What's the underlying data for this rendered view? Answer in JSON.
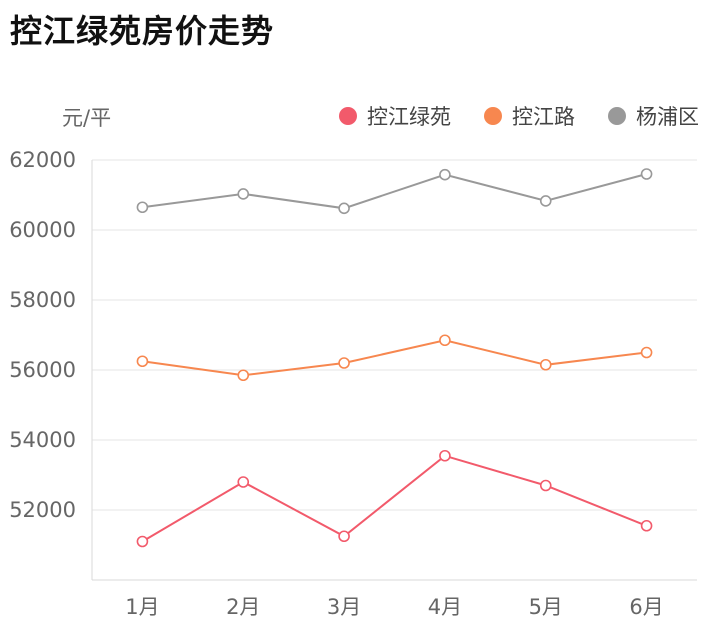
{
  "title": "控江绿苑房价走势",
  "chart_data": {
    "type": "line",
    "title": "控江绿苑房价走势",
    "ylabel": "元/平",
    "xlabel": "",
    "categories": [
      "1月",
      "2月",
      "3月",
      "4月",
      "5月",
      "6月"
    ],
    "ylim": [
      50000,
      62000
    ],
    "yticks": [
      52000,
      54000,
      56000,
      58000,
      60000,
      62000
    ],
    "grid": true,
    "legend_position": "top-right",
    "series": [
      {
        "name": "控江绿苑",
        "color": "#f25a6b",
        "values": [
          51100,
          52800,
          51250,
          53550,
          52700,
          51550
        ]
      },
      {
        "name": "控江路",
        "color": "#f7874f",
        "values": [
          56250,
          55850,
          56200,
          56850,
          56150,
          56500
        ]
      },
      {
        "name": "杨浦区",
        "color": "#999999",
        "values": [
          60650,
          61030,
          60620,
          61580,
          60830,
          61600
        ]
      }
    ]
  }
}
